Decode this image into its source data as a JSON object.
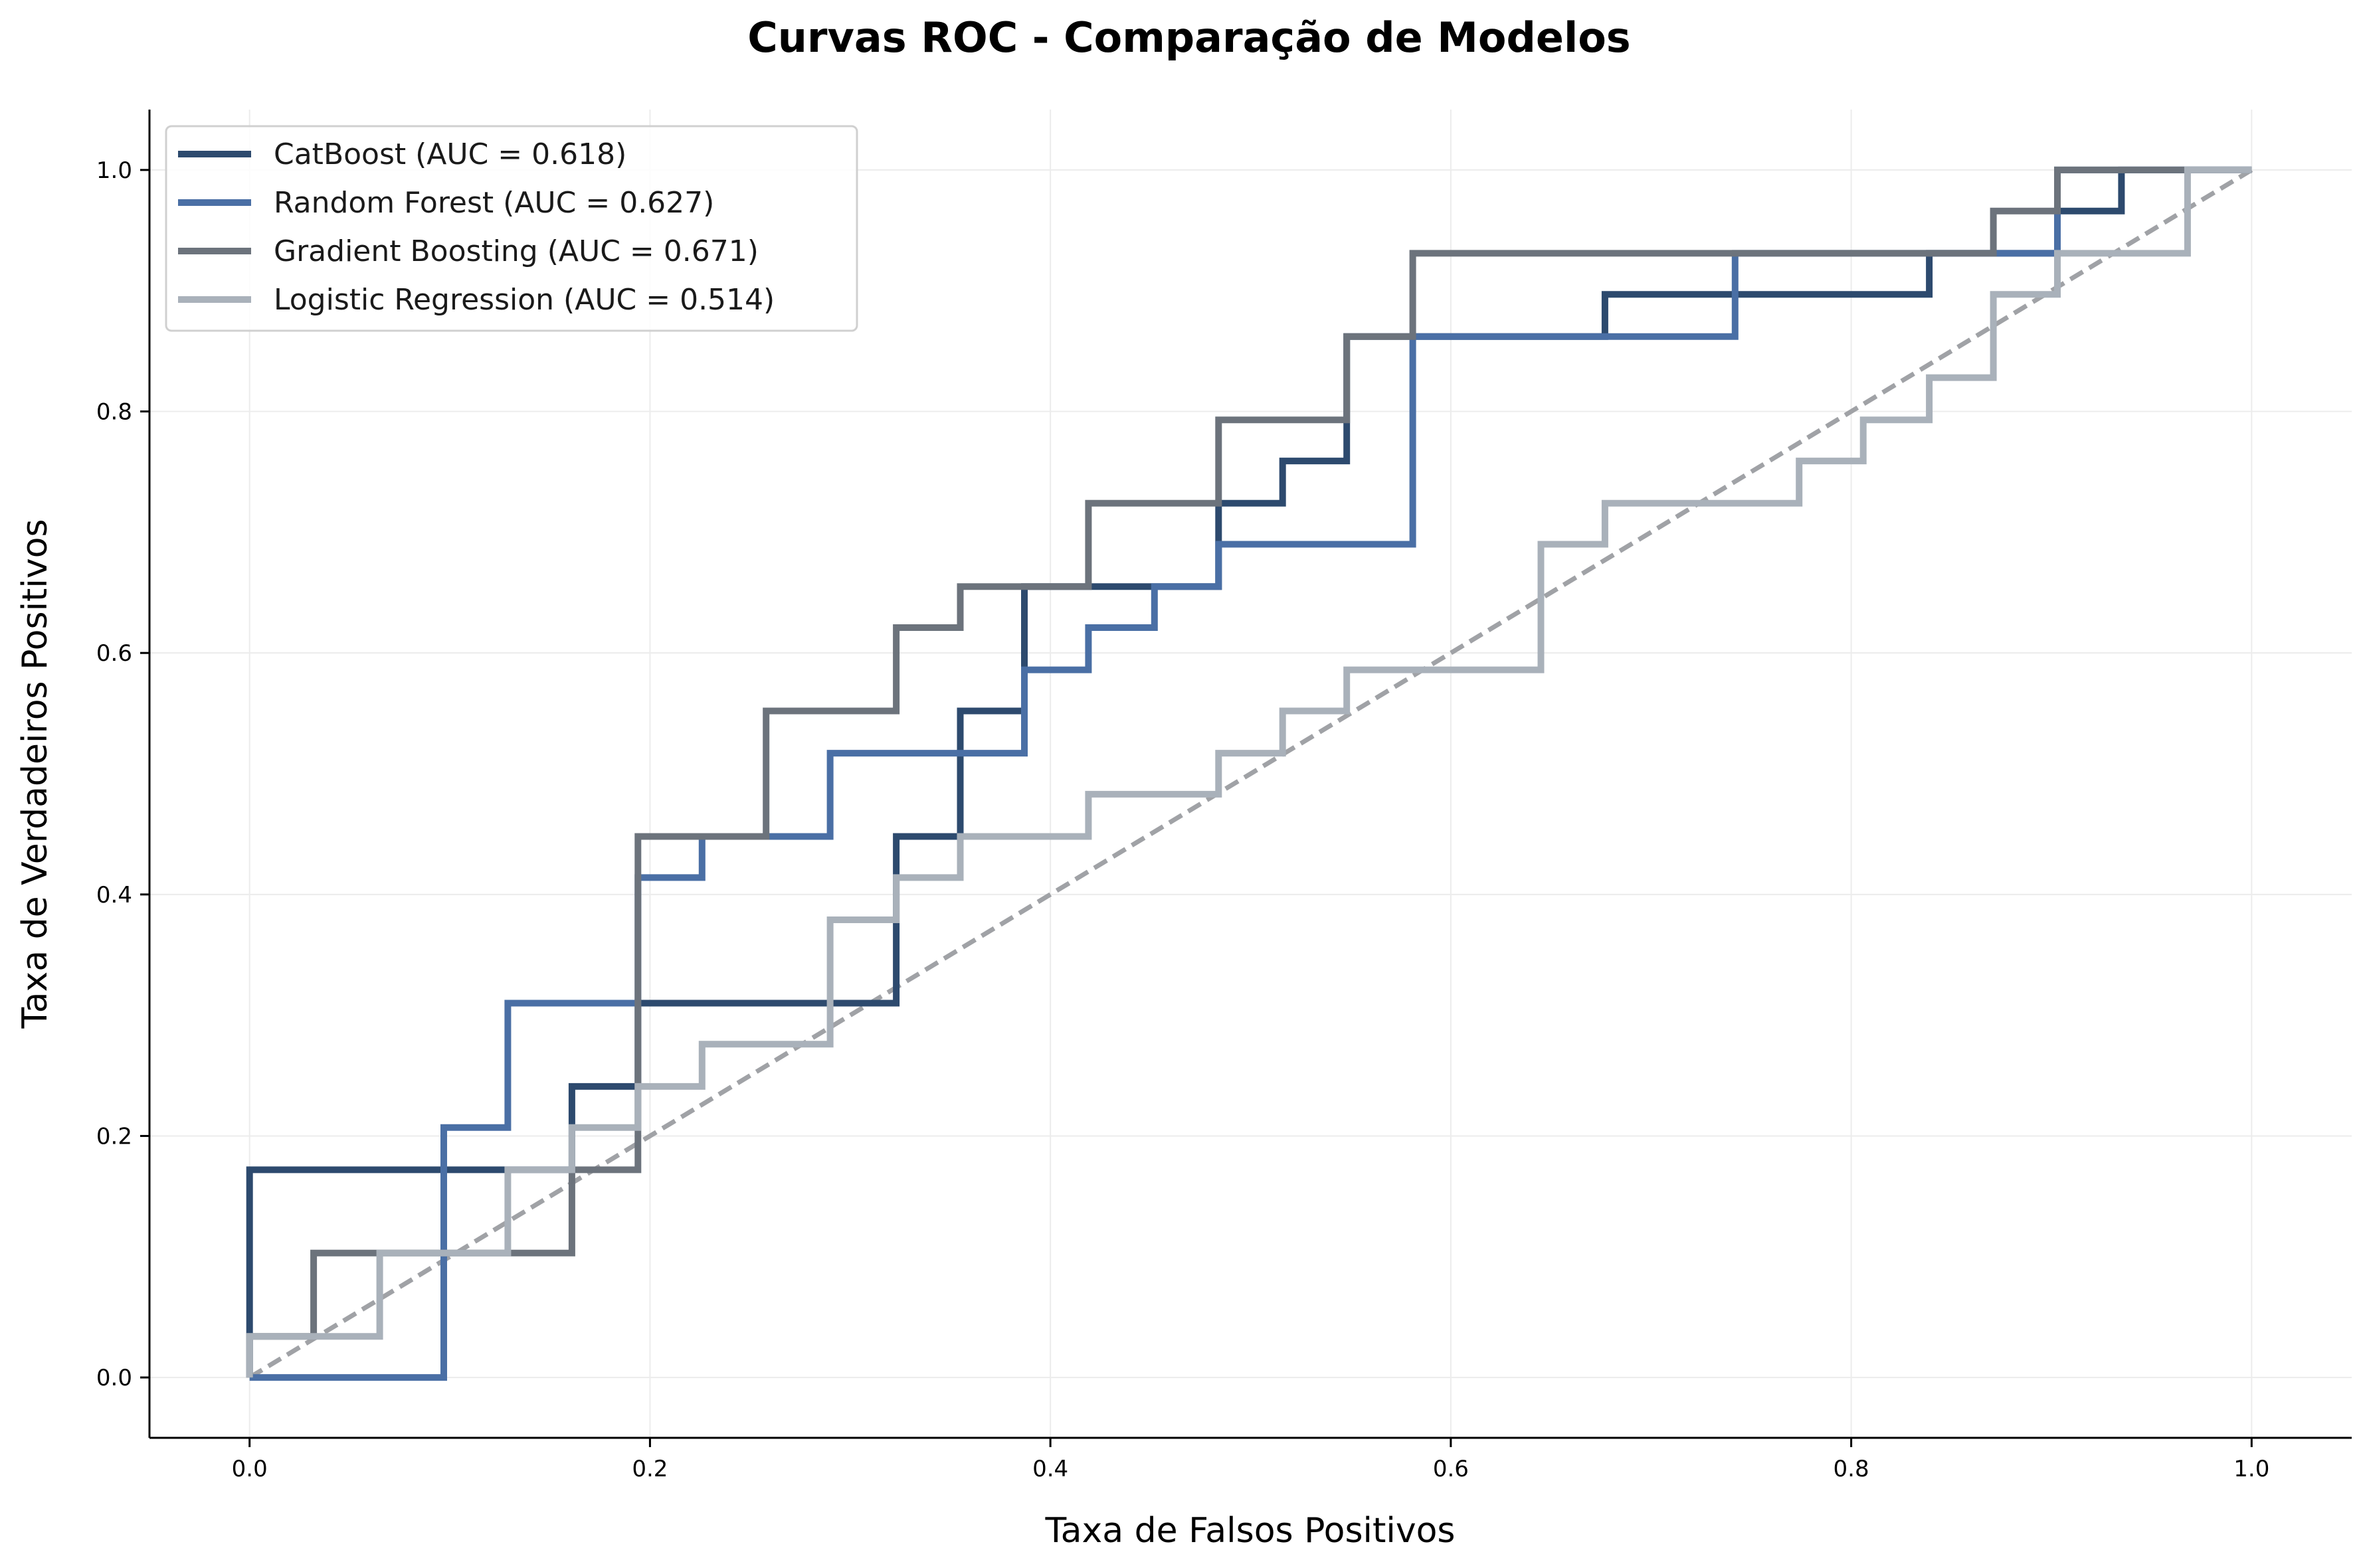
{
  "chart_data": {
    "type": "line",
    "title": "Curvas ROC - Comparação de Modelos",
    "xlabel": "Taxa de Falsos Positivos",
    "ylabel": "Taxa de Verdadeiros Positivos",
    "xlim": [
      -0.05,
      1.05
    ],
    "ylim": [
      -0.05,
      1.05
    ],
    "xticks": [
      0.0,
      0.2,
      0.4,
      0.6,
      0.8,
      1.0
    ],
    "yticks": [
      0.0,
      0.2,
      0.4,
      0.6,
      0.8,
      1.0
    ],
    "xtick_labels": [
      "0.0",
      "0.2",
      "0.4",
      "0.6",
      "0.8",
      "1.0"
    ],
    "ytick_labels": [
      "0.0",
      "0.2",
      "0.4",
      "0.6",
      "0.8",
      "1.0"
    ],
    "grid": true,
    "legend_position": "top-left",
    "diagonal": {
      "style": "dashed",
      "color": "#a0a2a6",
      "x": [
        0,
        1
      ],
      "y": [
        0,
        1
      ]
    },
    "series": [
      {
        "name": "CatBoost (AUC = 0.618)",
        "color": "#2d4a6e",
        "x": [
          0,
          0,
          0.097,
          0.097,
          0.161,
          0.161,
          0.194,
          0.194,
          0.323,
          0.323,
          0.355,
          0.355,
          0.387,
          0.387,
          0.484,
          0.484,
          0.516,
          0.516,
          0.548,
          0.548,
          0.581,
          0.581,
          0.677,
          0.677,
          0.839,
          0.839,
          0.903,
          0.903,
          0.935,
          0.935,
          1.0
        ],
        "y": [
          0,
          0.172,
          0.172,
          0.172,
          0.172,
          0.241,
          0.241,
          0.31,
          0.31,
          0.448,
          0.448,
          0.552,
          0.552,
          0.655,
          0.655,
          0.724,
          0.724,
          0.759,
          0.759,
          0.862,
          0.862,
          0.862,
          0.862,
          0.897,
          0.897,
          0.931,
          0.931,
          0.966,
          0.966,
          1.0,
          1.0
        ]
      },
      {
        "name": "Random Forest (AUC = 0.627)",
        "color": "#4a6fa5",
        "x": [
          0,
          0.097,
          0.097,
          0.129,
          0.129,
          0.194,
          0.194,
          0.226,
          0.226,
          0.29,
          0.29,
          0.387,
          0.387,
          0.419,
          0.419,
          0.452,
          0.452,
          0.484,
          0.484,
          0.581,
          0.581,
          0.742,
          0.742,
          0.903,
          0.903,
          1.0
        ],
        "y": [
          0,
          0,
          0.207,
          0.207,
          0.31,
          0.31,
          0.414,
          0.414,
          0.448,
          0.448,
          0.517,
          0.517,
          0.586,
          0.586,
          0.621,
          0.621,
          0.655,
          0.655,
          0.69,
          0.69,
          0.862,
          0.862,
          0.931,
          0.931,
          1.0,
          1.0
        ]
      },
      {
        "name": "Gradient Boosting (AUC = 0.671)",
        "color": "#6c737c",
        "x": [
          0,
          0,
          0.032,
          0.032,
          0.129,
          0.129,
          0.161,
          0.161,
          0.194,
          0.194,
          0.258,
          0.258,
          0.323,
          0.323,
          0.355,
          0.355,
          0.419,
          0.419,
          0.484,
          0.484,
          0.548,
          0.548,
          0.581,
          0.581,
          0.871,
          0.871,
          0.903,
          0.903,
          1.0
        ],
        "y": [
          0,
          0.034,
          0.034,
          0.103,
          0.103,
          0.103,
          0.103,
          0.172,
          0.172,
          0.448,
          0.448,
          0.552,
          0.552,
          0.621,
          0.621,
          0.655,
          0.655,
          0.724,
          0.724,
          0.793,
          0.793,
          0.862,
          0.862,
          0.931,
          0.931,
          0.966,
          0.966,
          1.0,
          1.0
        ]
      },
      {
        "name": "Logistic Regression (AUC = 0.514)",
        "color": "#a9b1ba",
        "x": [
          0,
          0,
          0.065,
          0.065,
          0.129,
          0.129,
          0.161,
          0.161,
          0.194,
          0.194,
          0.226,
          0.226,
          0.29,
          0.29,
          0.323,
          0.323,
          0.355,
          0.355,
          0.419,
          0.419,
          0.484,
          0.484,
          0.516,
          0.516,
          0.548,
          0.548,
          0.645,
          0.645,
          0.677,
          0.677,
          0.774,
          0.774,
          0.806,
          0.806,
          0.839,
          0.839,
          0.871,
          0.871,
          0.903,
          0.903,
          0.968,
          0.968,
          1.0
        ],
        "y": [
          0,
          0.034,
          0.034,
          0.103,
          0.103,
          0.172,
          0.172,
          0.207,
          0.207,
          0.241,
          0.241,
          0.276,
          0.276,
          0.379,
          0.379,
          0.414,
          0.414,
          0.448,
          0.448,
          0.483,
          0.483,
          0.517,
          0.517,
          0.552,
          0.552,
          0.586,
          0.586,
          0.69,
          0.69,
          0.724,
          0.724,
          0.759,
          0.759,
          0.793,
          0.793,
          0.828,
          0.828,
          0.897,
          0.897,
          0.931,
          0.931,
          1.0,
          1.0
        ]
      }
    ]
  }
}
